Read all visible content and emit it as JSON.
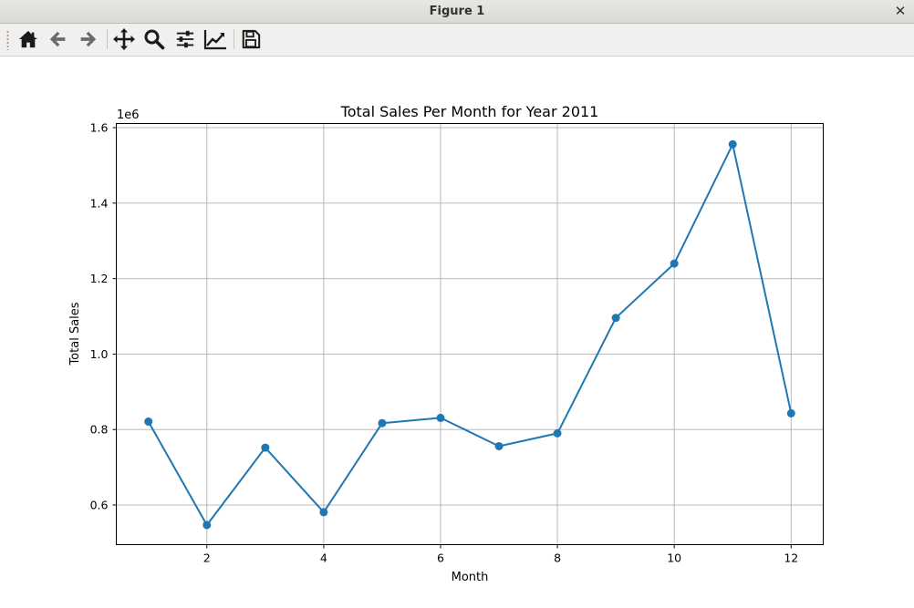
{
  "window": {
    "title": "Figure 1",
    "close_glyph": "✕"
  },
  "toolbar": {
    "buttons": [
      {
        "name": "home-button",
        "icon": "home-icon",
        "tooltip": "Reset original view"
      },
      {
        "name": "back-button",
        "icon": "arrow-left-icon",
        "tooltip": "Back to previous view"
      },
      {
        "name": "forward-button",
        "icon": "arrow-right-icon",
        "tooltip": "Forward to next view"
      },
      {
        "name": "pan-button",
        "icon": "move-icon",
        "tooltip": "Pan axes"
      },
      {
        "name": "zoom-button",
        "icon": "magnifier-icon",
        "tooltip": "Zoom to rectangle"
      },
      {
        "name": "subplots-button",
        "icon": "sliders-icon",
        "tooltip": "Configure subplots"
      },
      {
        "name": "edit-axis-button",
        "icon": "chart-line-icon",
        "tooltip": "Edit axis"
      },
      {
        "name": "save-button",
        "icon": "floppy-disk-icon",
        "tooltip": "Save the figure"
      }
    ]
  },
  "chart_data": {
    "type": "line",
    "title": "Total Sales Per Month for Year 2011",
    "xlabel": "Month",
    "ylabel": "Total Sales",
    "y_offset_label": "1e6",
    "x": [
      1,
      2,
      3,
      4,
      5,
      6,
      7,
      8,
      9,
      10,
      11,
      12
    ],
    "series": [
      {
        "values": [
          821000,
          547000,
          752000,
          581000,
          817000,
          831000,
          756000,
          790000,
          1096000,
          1240000,
          1556000,
          843000
        ],
        "color": "#1f77b4",
        "marker": "circle"
      }
    ],
    "xlim": [
      0.45,
      12.55
    ],
    "ylim": [
      0.495,
      1.611
    ],
    "xticks": [
      2,
      4,
      6,
      8,
      10,
      12
    ],
    "yticks": [
      0.6,
      0.8,
      1.0,
      1.2,
      1.4,
      1.6
    ],
    "ytick_labels": [
      "0.6",
      "0.8",
      "1.0",
      "1.2",
      "1.4",
      "1.6"
    ],
    "grid": true,
    "grid_color": "#b0b0b0",
    "line_color": "#1f77b4"
  }
}
